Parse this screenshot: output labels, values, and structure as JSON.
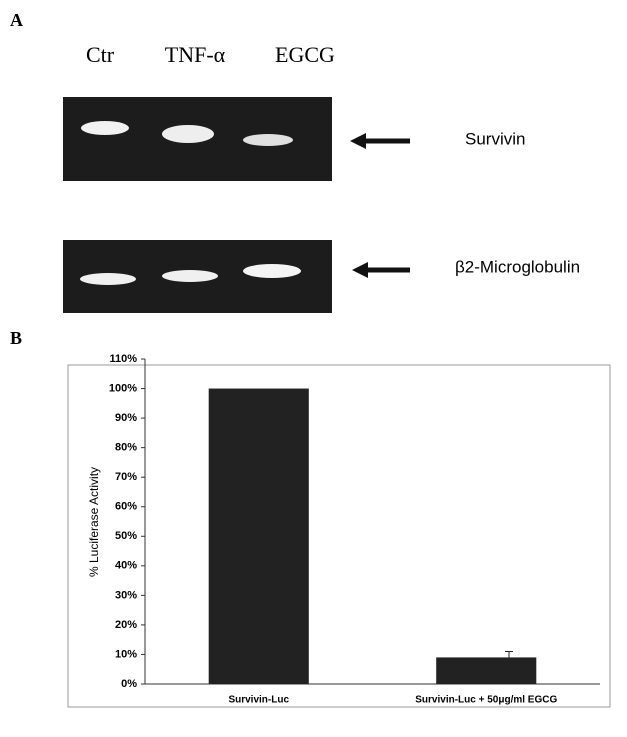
{
  "panel_a": {
    "label": "A",
    "lanes": [
      "Ctr",
      "TNF-α",
      "EGCG"
    ],
    "bands": [
      "Survivin",
      "β2-Microglobulin"
    ]
  },
  "panel_b": {
    "label": "B"
  },
  "chart_data": {
    "type": "bar",
    "ylabel": "% Luciferase Activity",
    "categories": [
      "Survivin-Luc",
      "Survivin-Luc + 50μg/ml EGCG"
    ],
    "values": [
      100,
      9
    ],
    "errors": [
      null,
      2
    ],
    "color": "#222222",
    "ylim": [
      0,
      110
    ],
    "yticks": [
      {
        "value": 0,
        "label": "0%"
      },
      {
        "value": 10,
        "label": "10%"
      },
      {
        "value": 20,
        "label": "20%"
      },
      {
        "value": 30,
        "label": "30%"
      },
      {
        "value": 40,
        "label": "40%"
      },
      {
        "value": 50,
        "label": "50%"
      },
      {
        "value": 60,
        "label": "60%"
      },
      {
        "value": 70,
        "label": "70%"
      },
      {
        "value": 80,
        "label": "80%"
      },
      {
        "value": 90,
        "label": "90%"
      },
      {
        "value": 100,
        "label": "100%"
      },
      {
        "value": 110,
        "label": "110%"
      }
    ]
  }
}
